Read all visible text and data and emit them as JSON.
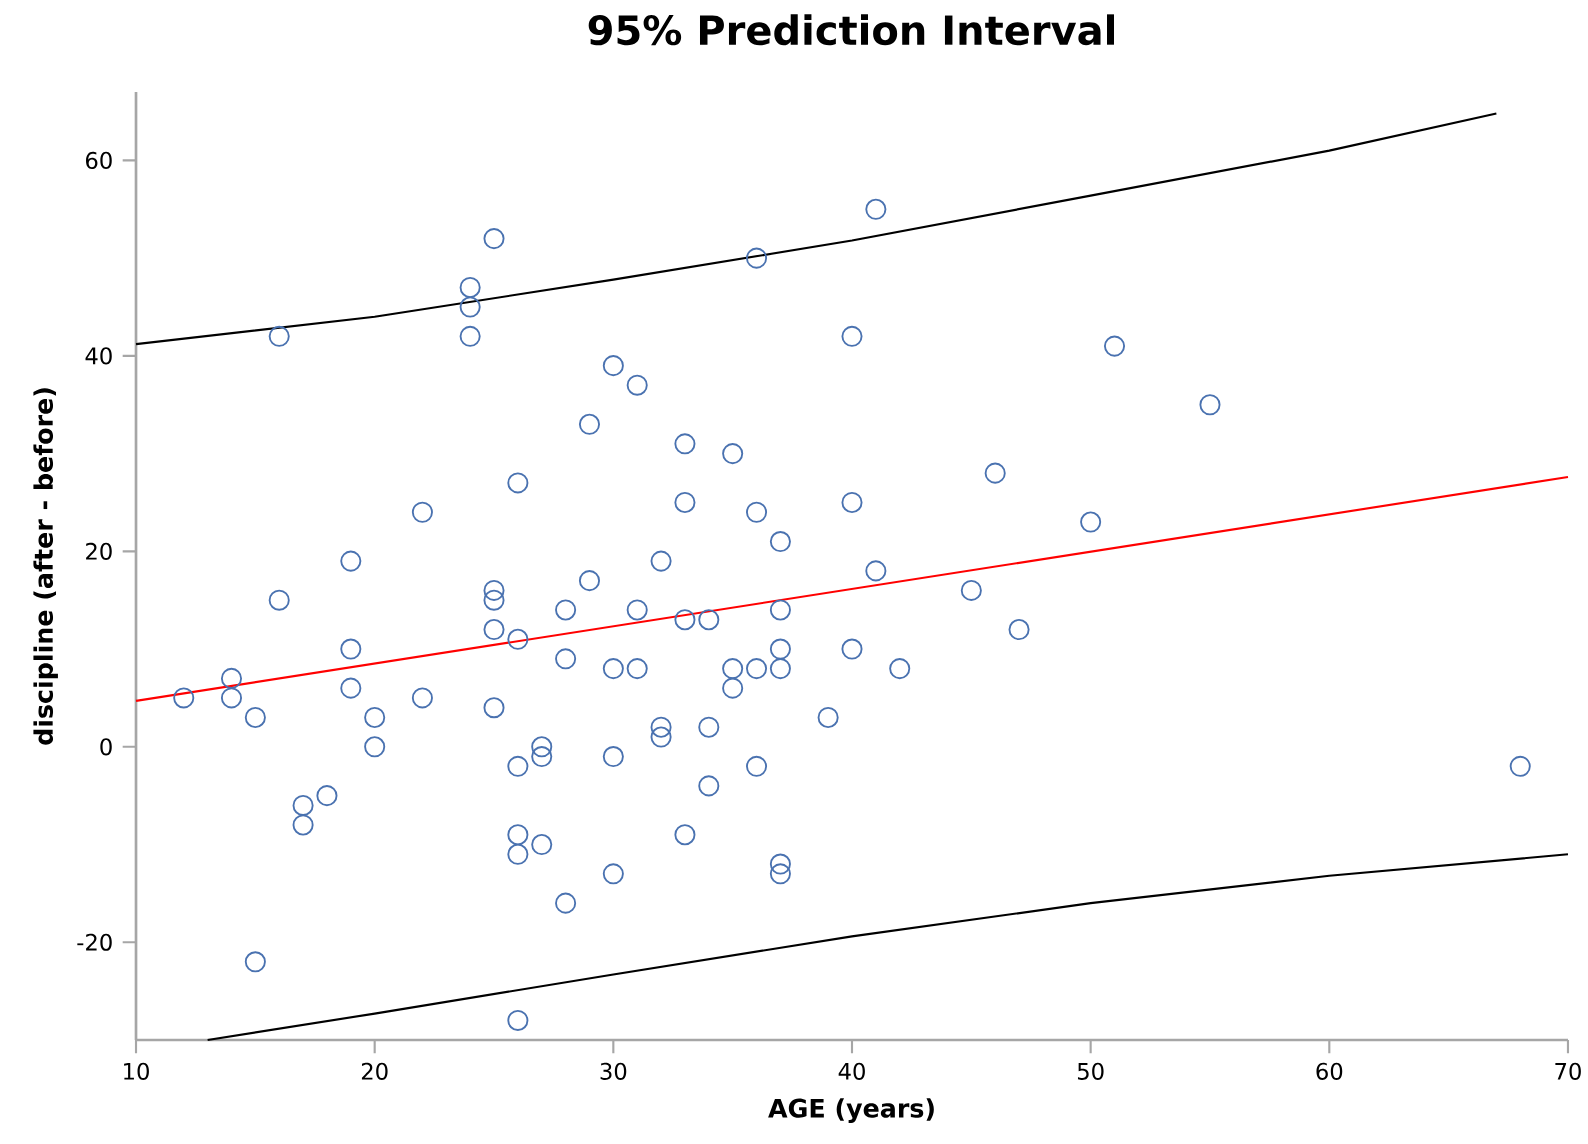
{
  "chart_data": {
    "type": "scatter",
    "title": "95% Prediction Interval",
    "xlabel": "AGE (years)",
    "ylabel": "discipline (after - before)",
    "xlim": [
      10,
      70
    ],
    "ylim": [
      -30,
      67
    ],
    "xticks": [
      10,
      20,
      30,
      40,
      50,
      60,
      70
    ],
    "yticks": [
      -20,
      0,
      20,
      40,
      60
    ],
    "grid": false,
    "series": [
      {
        "marker": "circle",
        "color": "#4a72b0",
        "x": [
          12,
          14,
          14,
          15,
          15,
          16,
          16,
          17,
          17,
          18,
          19,
          19,
          19,
          20,
          20,
          22,
          22,
          24,
          24,
          24,
          25,
          25,
          25,
          25,
          25,
          26,
          26,
          26,
          26,
          26,
          26,
          27,
          27,
          27,
          28,
          28,
          28,
          29,
          29,
          30,
          30,
          30,
          30,
          31,
          31,
          31,
          32,
          32,
          32,
          33,
          33,
          33,
          33,
          34,
          34,
          34,
          35,
          35,
          35,
          36,
          36,
          36,
          36,
          37,
          37,
          37,
          37,
          37,
          37,
          39,
          40,
          40,
          40,
          41,
          41,
          42,
          45,
          46,
          47,
          50,
          51,
          55,
          68
        ],
        "values": [
          5,
          7,
          5,
          3,
          -22,
          42,
          15,
          -6,
          -8,
          -5,
          19,
          10,
          6,
          3,
          0,
          24,
          5,
          47,
          45,
          42,
          52,
          16,
          15,
          12,
          4,
          27,
          11,
          -2,
          -9,
          -11,
          -28,
          0,
          -1,
          -10,
          14,
          9,
          -16,
          33,
          17,
          39,
          8,
          -1,
          -13,
          37,
          14,
          8,
          19,
          2,
          1,
          31,
          25,
          13,
          -9,
          13,
          2,
          -4,
          30,
          8,
          6,
          50,
          24,
          8,
          -2,
          21,
          14,
          10,
          8,
          -12,
          -13,
          3,
          42,
          25,
          10,
          55,
          18,
          8,
          16,
          28,
          12,
          23,
          41,
          35,
          -2
        ]
      },
      {
        "type": "line",
        "marker": "none",
        "color": "#000000",
        "x": [
          10,
          20,
          30,
          40,
          50,
          60,
          67
        ],
        "values": [
          41.2,
          44,
          47.8,
          51.8,
          56.4,
          61,
          64.8
        ]
      },
      {
        "type": "line",
        "marker": "none",
        "color": "#ff0000",
        "x": [
          10,
          70
        ],
        "values": [
          4.7,
          27.6
        ]
      },
      {
        "type": "line",
        "marker": "none",
        "color": "#000000",
        "x": [
          13,
          20,
          30,
          40,
          50,
          60,
          70
        ],
        "values": [
          -30,
          -27.3,
          -23.3,
          -19.4,
          -16,
          -13.2,
          -11
        ]
      }
    ]
  }
}
